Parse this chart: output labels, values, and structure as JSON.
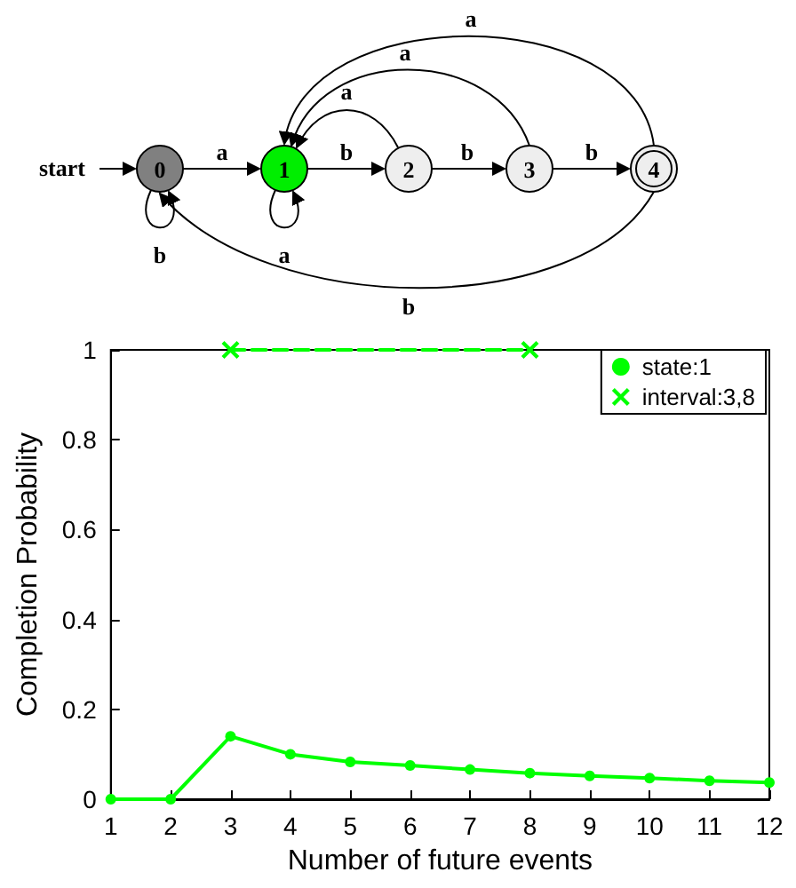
{
  "chart_data": {
    "type": "line",
    "xlabel": "Number of future events",
    "ylabel": "Completion Probability",
    "annotations": [
      "start",
      "0",
      "1",
      "2",
      "3",
      "4",
      "a",
      "b",
      "b",
      "b",
      "b",
      "a",
      "a",
      "a",
      "a",
      "b"
    ],
    "x": [
      1,
      2,
      3,
      4,
      5,
      6,
      7,
      8,
      9,
      10,
      11,
      12
    ],
    "series": [
      {
        "name": "state:1",
        "color": "#00ff00",
        "marker": "circle",
        "line_style": "solid",
        "values": [
          0,
          0,
          0.14,
          0.1,
          0.083,
          0.075,
          0.066,
          0.058,
          0.052,
          0.047,
          0.041,
          0.037
        ]
      },
      {
        "name": "interval:3,8",
        "color": "#00ff00",
        "marker": "cross",
        "line_style": "dashed",
        "x": [
          3,
          8
        ],
        "values": [
          1,
          1
        ]
      }
    ],
    "xlim": [
      1,
      12
    ],
    "xticks": [
      1,
      2,
      3,
      4,
      5,
      6,
      7,
      8,
      9,
      10,
      11,
      12
    ],
    "ylim": [
      0,
      1
    ],
    "yticks": [
      0,
      0.2,
      0.4,
      0.6,
      0.8,
      1
    ],
    "grid": false,
    "legend": "top right"
  }
}
